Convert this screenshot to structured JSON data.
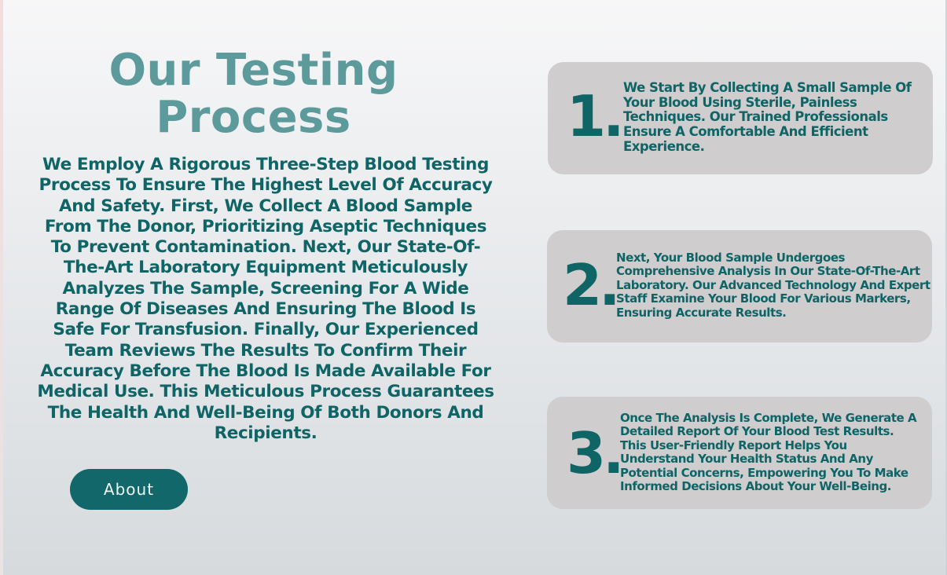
{
  "section": {
    "title": "Our Testing Process",
    "description": "We Employ A Rigorous Three-Step Blood Testing Process To Ensure The Highest Level Of Accuracy And Safety. First, We Collect A Blood Sample From The Donor, Prioritizing Aseptic Techniques To Prevent Contamination. Next, Our State-Of-The-Art Laboratory Equipment Meticulously Analyzes The Sample, Screening For A Wide Range Of Diseases And Ensuring The Blood Is Safe For Transfusion. Finally, Our Experienced Team Reviews The Results To Confirm Their Accuracy Before The Blood Is Made Available For Medical Use. This Meticulous Process Guarantees The Health And Well-Being Of Both Donors And Recipients.",
    "button_label": "About"
  },
  "steps": [
    {
      "number": "1.",
      "text": "We Start By Collecting A Small Sample Of Your Blood Using Sterile, Painless Techniques. Our Trained Professionals Ensure A Comfortable And Efficient Experience."
    },
    {
      "number": "2.",
      "text": "Next, Your Blood Sample Undergoes Comprehensive Analysis In Our State-Of-The-Art Laboratory. Our Advanced Technology And Expert Staff Examine Your Blood For Various Markers, Ensuring Accurate Results."
    },
    {
      "number": "3.",
      "text": "Once The Analysis Is Complete, We Generate A Detailed Report Of Your Blood Test Results. This User-Friendly Report Helps You Understand Your Health Status And Any Potential Concerns, Empowering You To Make Informed Decisions About Your Well-Being."
    }
  ],
  "colors": {
    "primary": "#0f6466",
    "title": "#5c9a9b",
    "card_background": "#cfcdce",
    "button_background": "#11676a",
    "button_text": "#eef6f6"
  }
}
